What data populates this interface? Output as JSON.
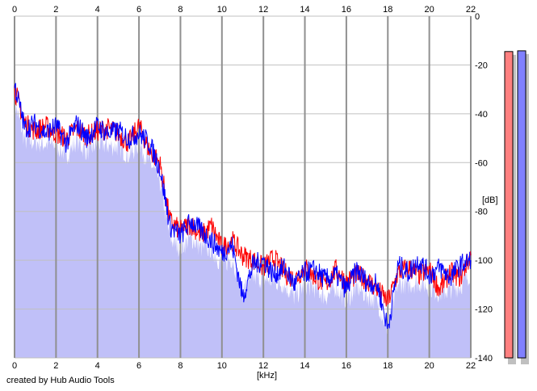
{
  "chart_data": {
    "type": "line",
    "xlabel": "[kHz]",
    "ylabel": "[dB]",
    "xlim": [
      0,
      22
    ],
    "ylim": [
      -140,
      0
    ],
    "x_ticks": [
      "0",
      "2",
      "4",
      "6",
      "8",
      "10",
      "12",
      "14",
      "16",
      "18",
      "20",
      "22"
    ],
    "y_ticks": [
      "0",
      "-20",
      "-40",
      "-60",
      "-80",
      "-100",
      "-120",
      "-140"
    ],
    "grid": true,
    "x": [
      0,
      0.5,
      1,
      1.5,
      2,
      2.5,
      3,
      3.5,
      4,
      4.5,
      5,
      5.5,
      6,
      6.5,
      7,
      7.5,
      8,
      8.5,
      9,
      9.5,
      10,
      10.5,
      11,
      11.5,
      12,
      12.5,
      13,
      13.5,
      14,
      14.5,
      15,
      15.5,
      16,
      16.5,
      17,
      17.5,
      18,
      18.5,
      19,
      19.5,
      20,
      20.5,
      21,
      21.5,
      22
    ],
    "series": [
      {
        "color": "#ff0000",
        "values": [
          -30,
          -44,
          -47,
          -45,
          -48,
          -50,
          -46,
          -49,
          -47,
          -46,
          -48,
          -52,
          -45,
          -55,
          -60,
          -84,
          -88,
          -85,
          -90,
          -86,
          -95,
          -92,
          -98,
          -100,
          -103,
          -99,
          -105,
          -108,
          -103,
          -107,
          -110,
          -104,
          -109,
          -106,
          -108,
          -112,
          -117,
          -105,
          -103,
          -106,
          -104,
          -112,
          -105,
          -107,
          -98
        ]
      },
      {
        "color": "#0000ff",
        "values": [
          -28,
          -46,
          -44,
          -48,
          -45,
          -52,
          -44,
          -50,
          -45,
          -48,
          -47,
          -50,
          -48,
          -52,
          -62,
          -86,
          -90,
          -84,
          -88,
          -92,
          -97,
          -94,
          -115,
          -102,
          -100,
          -106,
          -103,
          -110,
          -105,
          -104,
          -108,
          -106,
          -112,
          -104,
          -109,
          -110,
          -128,
          -102,
          -105,
          -100,
          -106,
          -103,
          -107,
          -102,
          -100
        ]
      }
    ],
    "fill_color": "#c0c0f8",
    "level_meters": [
      {
        "color": "#ff8080",
        "level_db": -14.5
      },
      {
        "color": "#8080ff",
        "level_db": -14.2
      }
    ]
  },
  "footer": "created by Hub Audio Tools"
}
